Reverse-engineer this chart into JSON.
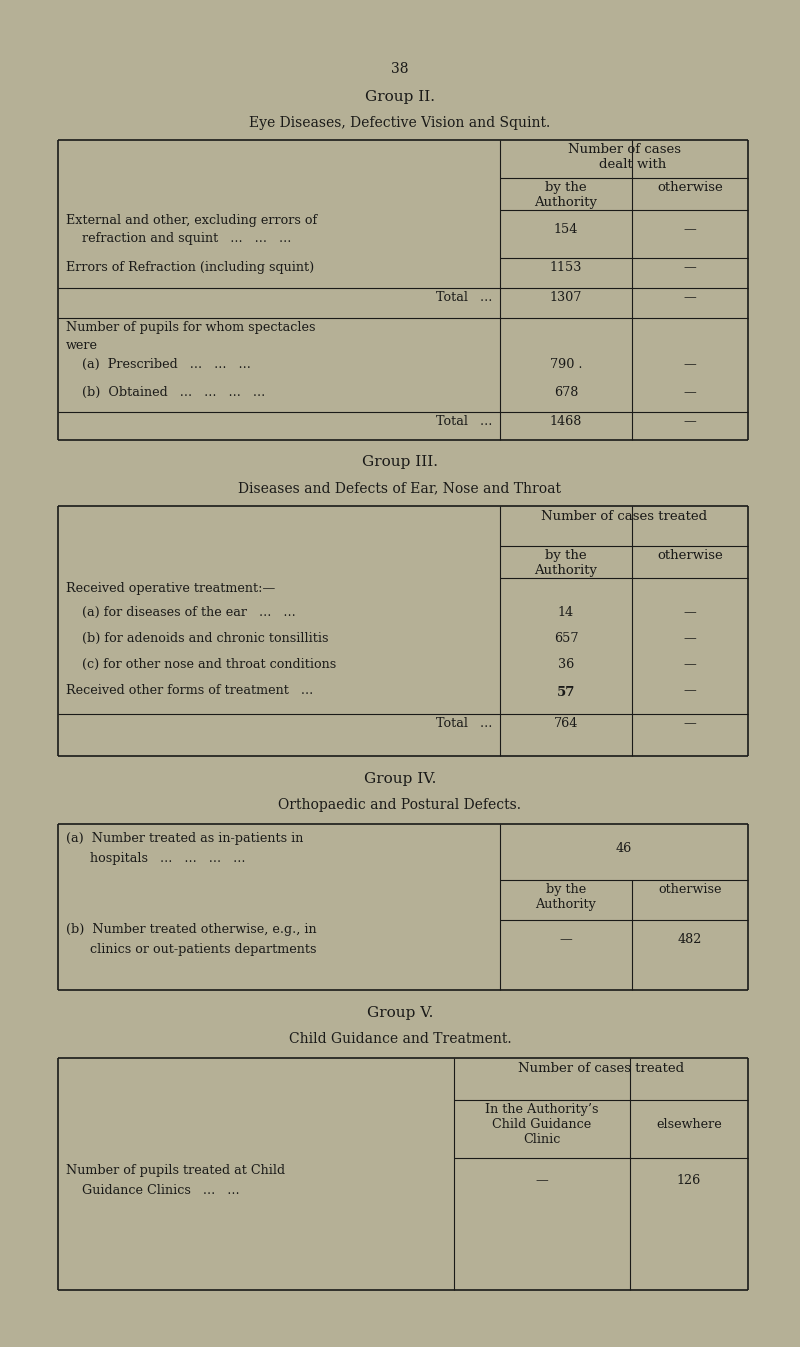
{
  "bg_color": "#b5b096",
  "page_num": "38",
  "group2_title": "Group II.",
  "group2_subtitle": "Eye Diseases, Defective Vision and Squint.",
  "group3_title": "Group III.",
  "group3_subtitle": "Diseases and Defects of Ear, Nose and Throat",
  "group4_title": "Group IV.",
  "group4_subtitle": "Orthopaedic and Postural Defects.",
  "group5_title": "Group V.",
  "group5_subtitle": "Child Guidance and Treatment.",
  "line_color": "#1a1a18",
  "text_color": "#1a1a18"
}
